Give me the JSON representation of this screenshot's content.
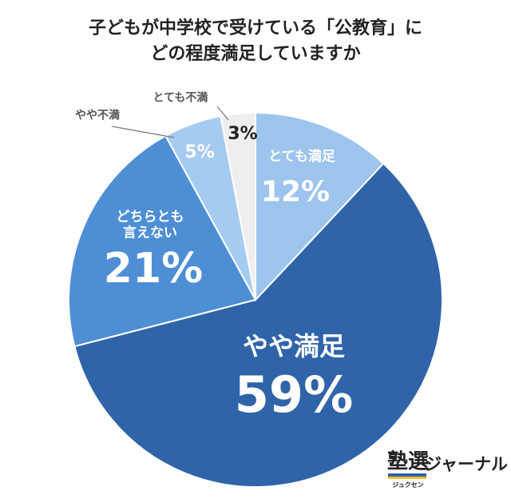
{
  "chart_data": {
    "type": "pie",
    "title": [
      "子どもが中学校で受けている「公教育」に",
      "どの程度満足していますか"
    ],
    "categories": [
      "とても満足",
      "やや満足",
      "どちらとも言えない",
      "やや不満",
      "とても不満"
    ],
    "values": [
      12,
      59,
      21,
      5,
      3
    ],
    "value_labels": [
      "12%",
      "59%",
      "21%",
      "5%",
      "3%"
    ],
    "colors": [
      "#9dc4ec",
      "#2f64a8",
      "#4e8ed5",
      "#a6cbf0",
      "#eeeeee"
    ]
  },
  "logo": {
    "main": "塾選",
    "reading": "ジュクセン",
    "name": "ジャーナル"
  }
}
